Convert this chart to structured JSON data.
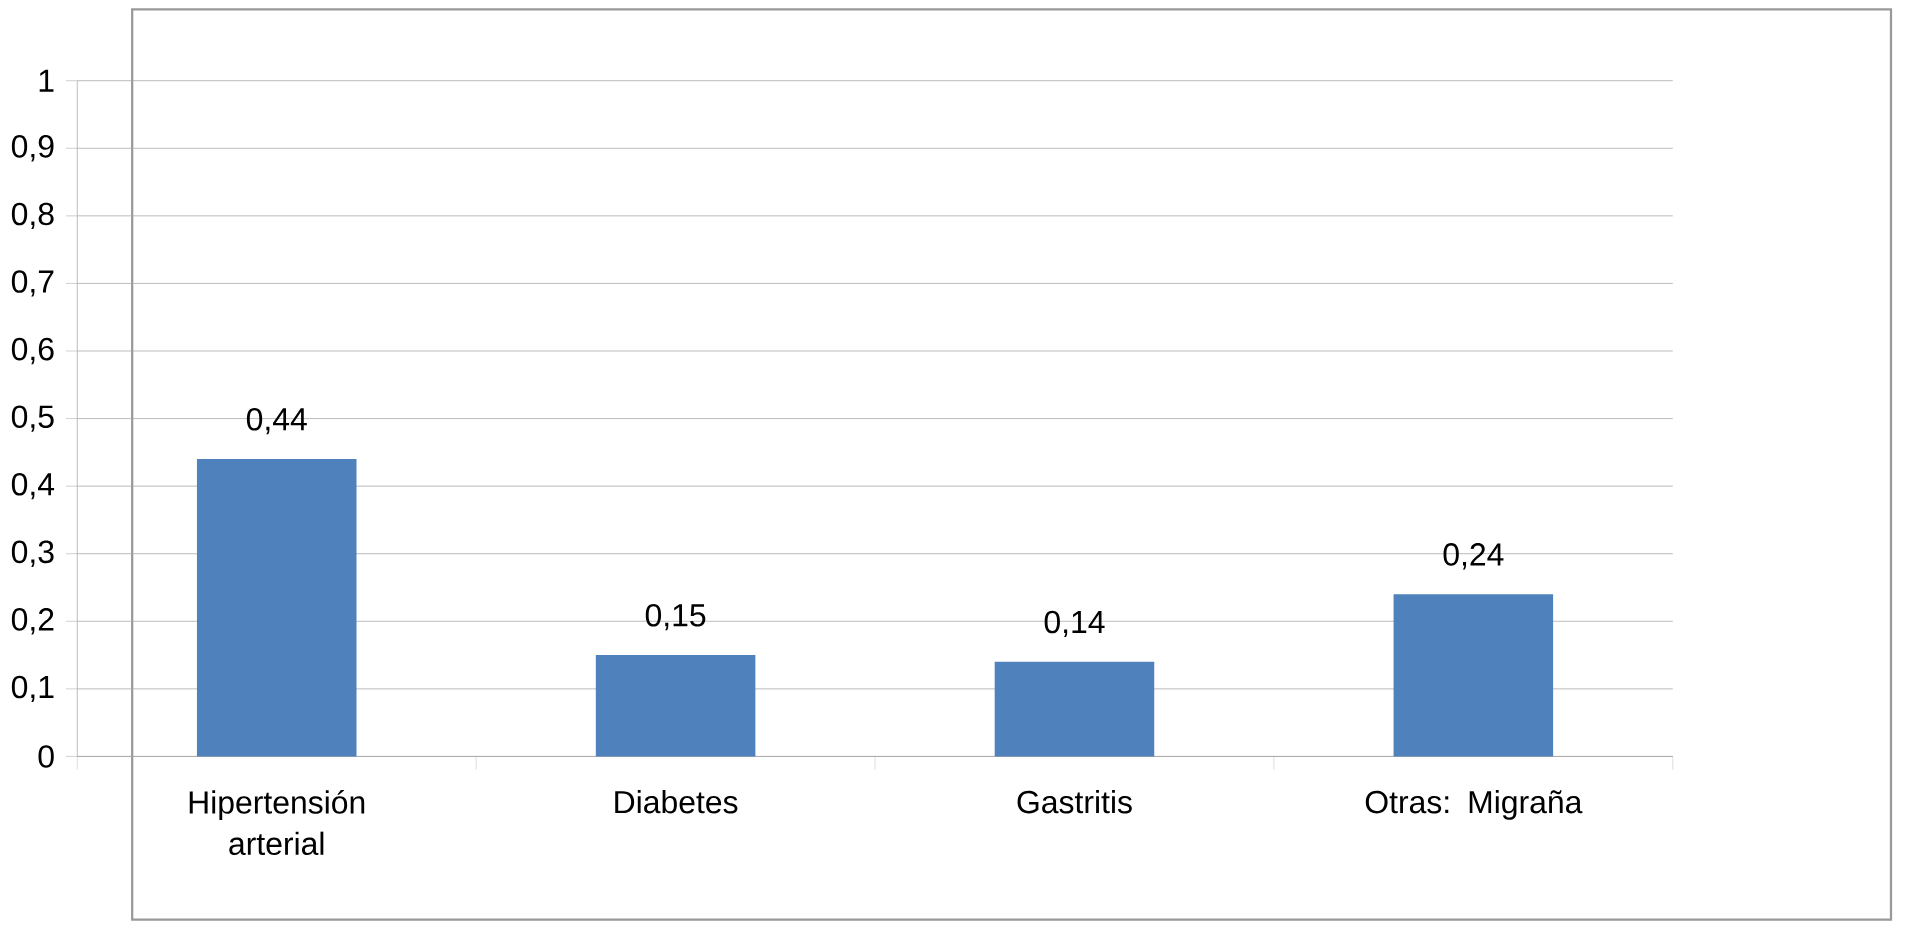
{
  "chart_data": {
    "type": "bar",
    "categories": [
      "Hipertensión arterial",
      "Diabetes",
      "Gastritis",
      "Otras: Migraña"
    ],
    "values": [
      0.44,
      0.15,
      0.14,
      0.24
    ],
    "value_labels": [
      "0,44",
      "0,15",
      "0,14",
      "0,24"
    ],
    "color": "#4f81bd",
    "ylim": [
      0,
      1
    ],
    "yticks": [
      {
        "value": 0,
        "label": "0"
      },
      {
        "value": 0.1,
        "label": "0,1"
      },
      {
        "value": 0.2,
        "label": "0,2"
      },
      {
        "value": 0.3,
        "label": "0,3"
      },
      {
        "value": 0.4,
        "label": "0,4"
      },
      {
        "value": 0.5,
        "label": "0,5"
      },
      {
        "value": 0.6,
        "label": "0,6"
      },
      {
        "value": 0.7,
        "label": "0,7"
      },
      {
        "value": 0.8,
        "label": "0,8"
      },
      {
        "value": 0.9,
        "label": "0,9"
      },
      {
        "value": 1,
        "label": "1"
      }
    ],
    "grid": "y"
  }
}
